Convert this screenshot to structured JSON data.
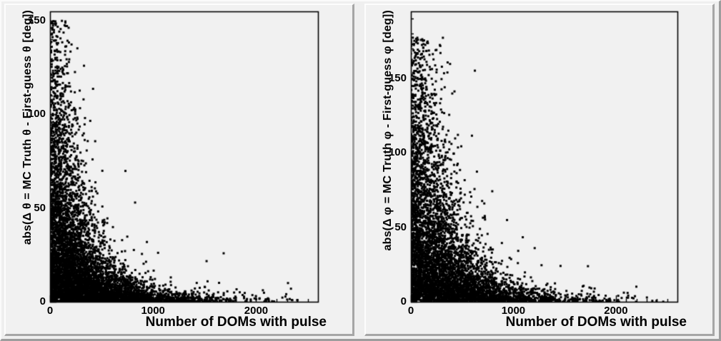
{
  "figure": {
    "kind": "two-panel scatter canvas",
    "background": "#f1f1f1",
    "bevel_light": "#fdfdfd",
    "bevel_dark": "#a6a6a6"
  },
  "chart_data": [
    {
      "type": "scatter",
      "title": "",
      "xlabel": "Number of DOMs with pulse",
      "ylabel": "abs(Δ θ = MC Truth θ - First-guess θ [deg])",
      "xlim": [
        0,
        2600
      ],
      "ylim": [
        0,
        155
      ],
      "x_major_ticks": [
        0,
        1000,
        2000
      ],
      "x_tick_labels": [
        "0",
        "1000",
        "2000"
      ],
      "x_minor_step": 100,
      "y_major_ticks": [
        0,
        50,
        100,
        150
      ],
      "y_tick_labels": [
        "0",
        "50",
        "100",
        "150"
      ],
      "y_minor_step": 10,
      "grid": false,
      "legend": "none",
      "marker": "filled-square",
      "marker_px": 3,
      "marker_color": "#000000",
      "axis_color": "#000000",
      "n_points": 6500,
      "distribution": {
        "kind": "generated-from-observed-envelope",
        "seed": 1234567,
        "x_exp_scale": 380,
        "x_max": 2550,
        "y_exp_amp": 62,
        "y_exp_tau": 260,
        "y_floor": 1.8,
        "y_max": 150,
        "outlier_frac": 0.012,
        "outlier_amp": 150,
        "outlier_tau": 1000
      },
      "summary": "Dense black column at x<200 reaching y≈145; envelope decays hyperbolically (y≈60 at x=400, y≈15 at x=1000, y≈5 at x=2000); solid band along y≈0 thins out to x≈2450."
    },
    {
      "type": "scatter",
      "title": "",
      "xlabel": "Number of DOMs with pulse",
      "ylabel": "abs(Δ φ = MC Truth φ - First-guess φ [deg])",
      "xlim": [
        0,
        2600
      ],
      "ylim": [
        0,
        195
      ],
      "x_major_ticks": [
        0,
        1000,
        2000
      ],
      "x_tick_labels": [
        "0",
        "1000",
        "2000"
      ],
      "x_minor_step": 100,
      "y_major_ticks": [
        0,
        50,
        100,
        150
      ],
      "y_tick_labels": [
        "0",
        "50",
        "100",
        "150"
      ],
      "y_minor_step": 10,
      "grid": false,
      "legend": "none",
      "marker": "filled-square",
      "marker_px": 3,
      "marker_color": "#000000",
      "axis_color": "#000000",
      "n_points": 5600,
      "distribution": {
        "kind": "generated-from-observed-envelope",
        "seed": 7654321,
        "x_exp_scale": 400,
        "x_max": 2550,
        "y_exp_amp": 95,
        "y_exp_tau": 290,
        "y_floor": 2.2,
        "y_max": 180,
        "outlier_frac": 0.02,
        "outlier_amp": 182,
        "outlier_tau": 900
      },
      "summary": "Dense column at x<250 spanning full 0–180 range (hard cut at 180); broader mid-y cloud out to x≈800 with isolated outliers near (700,130) and (820,105); bottom band extends to x≈2450."
    }
  ]
}
